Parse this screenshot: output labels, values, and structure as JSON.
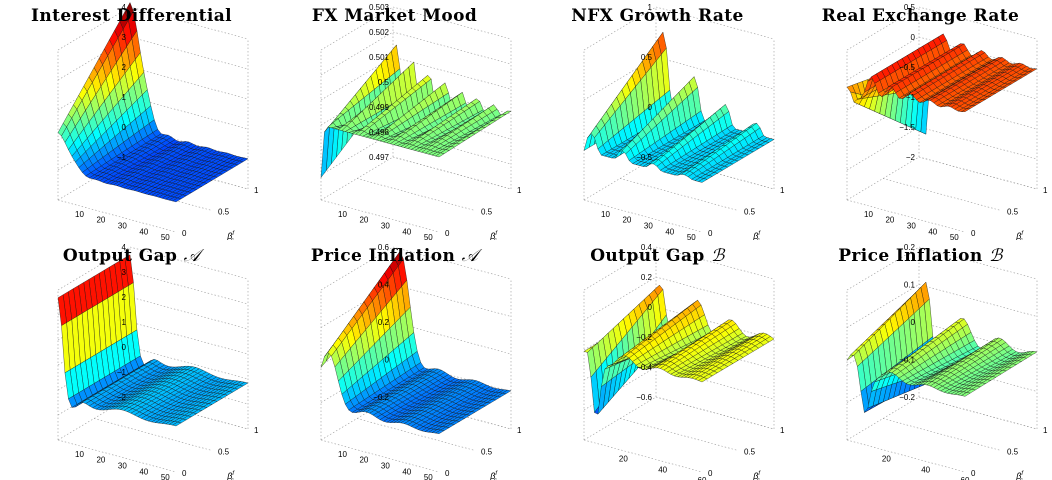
{
  "chart_data": [
    {
      "type": "surface",
      "title": "Interest Differential",
      "title_math": "",
      "zticks": [
        "4",
        "3",
        "2",
        "1",
        "0",
        "−1"
      ],
      "zlim": [
        -1,
        4
      ],
      "xticks": [
        "10",
        "20",
        "30",
        "40",
        "50"
      ],
      "xlim": [
        0,
        55
      ],
      "yticks": [
        "0",
        "0.5",
        "1"
      ],
      "ylim": [
        0,
        1
      ],
      "ylabel": "β",
      "ylabel_sup": "f",
      "ylabel_sub": "s",
      "colormap": "jet",
      "profile": "interest"
    },
    {
      "type": "surface",
      "title": "FX Market Mood",
      "title_math": "",
      "zticks": [
        "0.503",
        "0.502",
        "0.501",
        "0.5",
        "0.499",
        "0.498",
        "0.497"
      ],
      "zlim": [
        0.497,
        0.503
      ],
      "xticks": [
        "10",
        "20",
        "30",
        "40",
        "50"
      ],
      "xlim": [
        0,
        55
      ],
      "yticks": [
        "0",
        "0.5",
        "1"
      ],
      "ylim": [
        0,
        1
      ],
      "ylabel": "β",
      "ylabel_sup": "f",
      "ylabel_sub": "s",
      "colormap": "jet",
      "profile": "fxmood"
    },
    {
      "type": "surface",
      "title": "NFX Growth Rate",
      "title_math": "",
      "zticks": [
        "1",
        "0.5",
        "0",
        "−0.5"
      ],
      "zlim": [
        -0.5,
        1
      ],
      "xticks": [
        "10",
        "20",
        "30",
        "40",
        "50"
      ],
      "xlim": [
        0,
        55
      ],
      "yticks": [
        "0",
        "0.5",
        "1"
      ],
      "ylim": [
        0,
        1
      ],
      "ylabel": "β",
      "ylabel_sup": "f",
      "ylabel_sub": "s",
      "colormap": "jet",
      "profile": "nfx"
    },
    {
      "type": "surface",
      "title": "Real Exchange Rate",
      "title_math": "",
      "zticks": [
        "0.5",
        "0",
        "−0.5",
        "−1",
        "−1.5",
        "−2"
      ],
      "zlim": [
        -2,
        0.5
      ],
      "xticks": [
        "10",
        "20",
        "30",
        "40",
        "50"
      ],
      "xlim": [
        0,
        55
      ],
      "yticks": [
        "0",
        "0.5",
        "1"
      ],
      "ylim": [
        0,
        1
      ],
      "ylabel": "β",
      "ylabel_sup": "f",
      "ylabel_sub": "s",
      "colormap": "jet",
      "profile": "rer"
    },
    {
      "type": "surface",
      "title": "Output Gap",
      "title_math": "𝒜",
      "zticks": [
        "4",
        "3",
        "2",
        "1",
        "0",
        "−1",
        "−2"
      ],
      "zlim": [
        -2,
        4
      ],
      "xticks": [
        "10",
        "20",
        "30",
        "40",
        "50"
      ],
      "xlim": [
        0,
        55
      ],
      "yticks": [
        "0",
        "0.5",
        "1"
      ],
      "ylim": [
        0,
        1
      ],
      "ylabel": "β",
      "ylabel_sup": "f",
      "ylabel_sub": "s",
      "colormap": "jet",
      "profile": "outA"
    },
    {
      "type": "surface",
      "title": "Price Inflation",
      "title_math": "𝒜",
      "zticks": [
        "0.6",
        "0.4",
        "0.2",
        "0",
        "−0.2"
      ],
      "zlim": [
        -0.2,
        0.6
      ],
      "xticks": [
        "10",
        "20",
        "30",
        "40",
        "50"
      ],
      "xlim": [
        0,
        55
      ],
      "yticks": [
        "0",
        "0.5",
        "1"
      ],
      "ylim": [
        0,
        1
      ],
      "ylabel": "β",
      "ylabel_sup": "f",
      "ylabel_sub": "s",
      "colormap": "jet",
      "profile": "infA"
    },
    {
      "type": "surface",
      "title": "Output Gap",
      "title_math": "ℬ",
      "zticks": [
        "0.4",
        "0.2",
        "0",
        "−0.2",
        "−0.4",
        "−0.6"
      ],
      "zlim": [
        -0.6,
        0.4
      ],
      "xticks": [
        "20",
        "40",
        "60"
      ],
      "xlim": [
        0,
        60
      ],
      "yticks": [
        "0",
        "0.5",
        "1"
      ],
      "ylim": [
        0,
        1
      ],
      "ylabel": "β",
      "ylabel_sup": "f",
      "ylabel_sub": "s",
      "colormap": "jet",
      "profile": "outB"
    },
    {
      "type": "surface",
      "title": "Price Inflation",
      "title_math": "ℬ",
      "zticks": [
        "0.2",
        "0.1",
        "0",
        "−0.1",
        "−0.2"
      ],
      "zlim": [
        -0.2,
        0.2
      ],
      "xticks": [
        "20",
        "40",
        "60"
      ],
      "xlim": [
        0,
        60
      ],
      "yticks": [
        "0",
        "0.5",
        "1"
      ],
      "ylim": [
        0,
        1
      ],
      "ylabel": "β",
      "ylabel_sup": "f",
      "ylabel_sub": "s",
      "colormap": "jet",
      "profile": "infB"
    }
  ]
}
